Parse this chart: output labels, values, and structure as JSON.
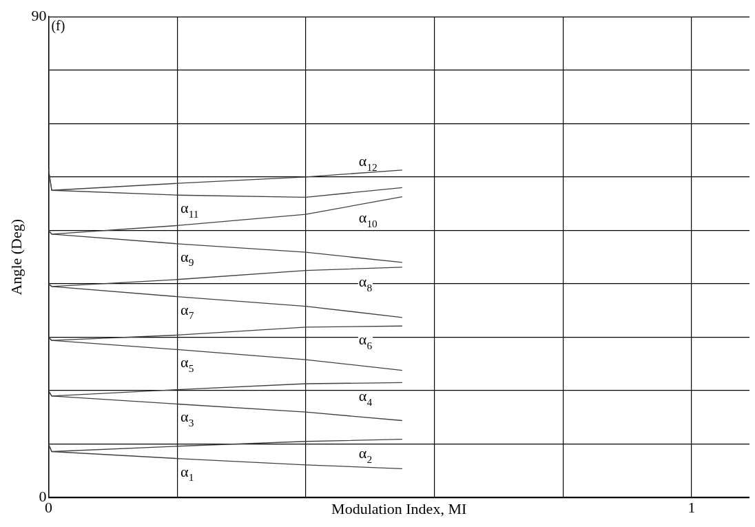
{
  "chart_data": {
    "type": "line",
    "xlabel": "Modulation Index, MI",
    "ylabel": "Angle (Deg)",
    "x": [
      0,
      0.005,
      0.2,
      0.4,
      0.55
    ],
    "series": [
      {
        "name": "α$_{1}$",
        "color": "#404040",
        "values": [
          10,
          8.6,
          7.3,
          6.1,
          5.4
        ]
      },
      {
        "name": "α$_{2}$",
        "color": "#404040",
        "values": [
          10,
          8.6,
          9.6,
          10.5,
          10.9
        ]
      },
      {
        "name": "α$_{3}$",
        "color": "#404040",
        "values": [
          20,
          19.0,
          17.5,
          16.0,
          14.4
        ]
      },
      {
        "name": "α$_{4}$",
        "color": "#404040",
        "values": [
          20,
          19.0,
          20.2,
          21.3,
          21.5
        ]
      },
      {
        "name": "α$_{5}$",
        "color": "#404040",
        "values": [
          30,
          29.4,
          27.7,
          25.8,
          23.8
        ]
      },
      {
        "name": "α$_{6}$",
        "color": "#404040",
        "values": [
          30,
          29.4,
          30.4,
          31.9,
          32.1
        ]
      },
      {
        "name": "α$_{7}$",
        "color": "#404040",
        "values": [
          40,
          39.5,
          37.6,
          35.8,
          33.7
        ]
      },
      {
        "name": "α$_{8}$",
        "color": "#404040",
        "values": [
          40,
          39.5,
          40.8,
          42.5,
          43.1
        ]
      },
      {
        "name": "α$_{9}$",
        "color": "#404040",
        "values": [
          50,
          49.3,
          47.5,
          45.9,
          44.0
        ]
      },
      {
        "name": "α$_{10}$",
        "color": "#404040",
        "values": [
          50,
          49.3,
          50.9,
          53.0,
          56.3
        ]
      },
      {
        "name": "α$_{11}$",
        "color": "#404040",
        "values": [
          61.4,
          57.5,
          56.6,
          56.2,
          58.0
        ]
      },
      {
        "name": "α$_{12}$",
        "color": "#404040",
        "values": [
          61.4,
          57.5,
          58.8,
          60.0,
          61.3
        ]
      }
    ],
    "annotations": [
      "(f)"
    ],
    "xlim": [
      0,
      1.09
    ],
    "xticks": [
      {
        "value": 0,
        "label": "0"
      },
      {
        "value": 0.2,
        "label": null
      },
      {
        "value": 0.4,
        "label": null
      },
      {
        "value": 0.6,
        "label": null
      },
      {
        "value": 0.8,
        "label": null
      },
      {
        "value": 1,
        "label": "1"
      }
    ],
    "ylim": [
      0,
      90
    ],
    "yticks": [
      {
        "value": 0,
        "label": "0"
      },
      {
        "value": 10,
        "label": null
      },
      {
        "value": 20,
        "label": null
      },
      {
        "value": 30,
        "label": null
      },
      {
        "value": 40,
        "label": null
      },
      {
        "value": 50,
        "label": null
      },
      {
        "value": 60,
        "label": null
      },
      {
        "value": 70,
        "label": null
      },
      {
        "value": 80,
        "label": null
      },
      {
        "value": 90,
        "label": "90"
      }
    ],
    "grid": true,
    "legend": false,
    "marker": "none",
    "line_style": "solid"
  }
}
